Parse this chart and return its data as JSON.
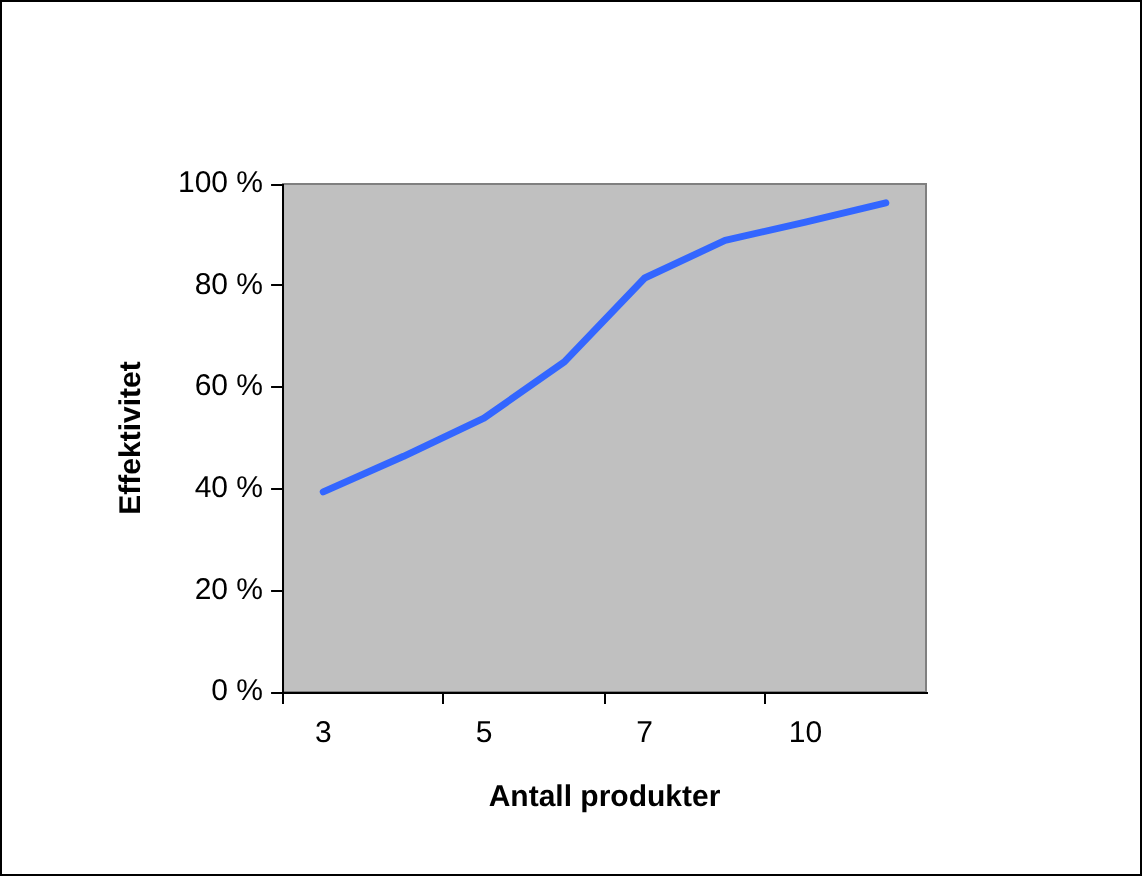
{
  "chart_data": {
    "type": "line",
    "xlabel": "Antall produkter",
    "ylabel": "Effektivitet",
    "categories": [
      "3",
      null,
      "5",
      null,
      "7",
      null,
      "10",
      null
    ],
    "series": [
      {
        "color": "#3366ff",
        "values": [
          39.4,
          46.4,
          53.9,
          65.0,
          81.5,
          88.9,
          92.5,
          96.3
        ]
      }
    ],
    "ylim": [
      0,
      100
    ],
    "yticks": [
      {
        "value": 0,
        "label": "0 %"
      },
      {
        "value": 20,
        "label": "20 %"
      },
      {
        "value": 40,
        "label": "40 %"
      },
      {
        "value": 60,
        "label": "60 %"
      },
      {
        "value": 80,
        "label": "80 %"
      },
      {
        "value": 100,
        "label": "100 %"
      }
    ],
    "grid": false,
    "legend": false,
    "marker": "none",
    "line_style": "solid"
  }
}
